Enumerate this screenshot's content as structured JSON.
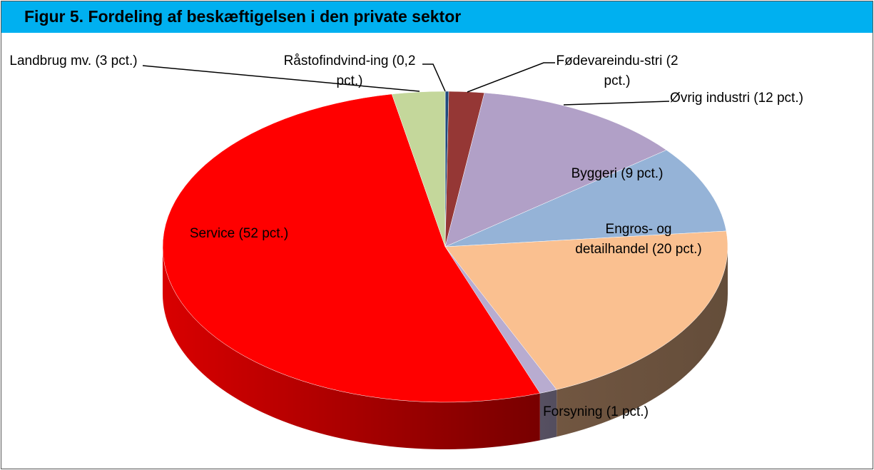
{
  "chart_data": {
    "type": "pie3d",
    "title": "Figur 5. Fordeling af beskæftigelsen i den private sektor",
    "categories": [
      "Råstofindvind-ing (0,2 pct.)",
      "Fødevareindu-stri (2 pct.)",
      "Øvrig industri (12 pct.)",
      "Byggeri (9 pct.)",
      "Engros- og detailhandel (20 pct.)",
      "Forsyning (1 pct.)",
      "Service (52 pct.)",
      "Landbrug mv. (3 pct.)"
    ],
    "values": [
      0.2,
      2,
      12,
      9,
      20,
      1,
      52,
      3
    ],
    "colors": [
      "#1f497d",
      "#953735",
      "#b1a0c7",
      "#95b3d7",
      "#fac090",
      "#b8acd0",
      "#ff0000",
      "#c4d79b"
    ]
  }
}
